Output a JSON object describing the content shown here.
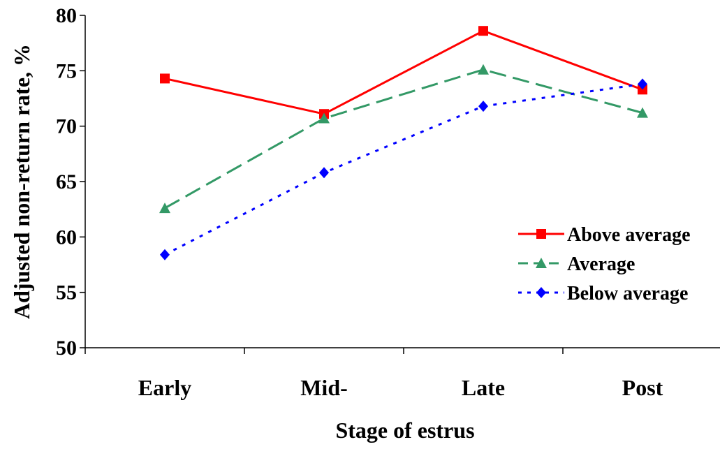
{
  "chart_data": {
    "type": "line",
    "title": "",
    "xlabel": "Stage of estrus",
    "ylabel": "Adjusted non-return rate, %",
    "categories": [
      "Early",
      "Mid-",
      "Late",
      "Post"
    ],
    "ylim": [
      50,
      80
    ],
    "yticks": [
      50,
      55,
      60,
      65,
      70,
      75,
      80
    ],
    "grid": false,
    "legend_position": "right",
    "series": [
      {
        "name": "Above average",
        "values": [
          74.3,
          71.1,
          78.6,
          73.3
        ],
        "color": "#ff0000",
        "marker": "square",
        "line_style": "solid"
      },
      {
        "name": "Average",
        "values": [
          62.6,
          70.7,
          75.1,
          71.2
        ],
        "color": "#339966",
        "marker": "triangle",
        "line_style": "dashed"
      },
      {
        "name": "Below average",
        "values": [
          58.4,
          65.8,
          71.8,
          73.8
        ],
        "color": "#0000ff",
        "marker": "diamond",
        "line_style": "dotted"
      }
    ]
  }
}
